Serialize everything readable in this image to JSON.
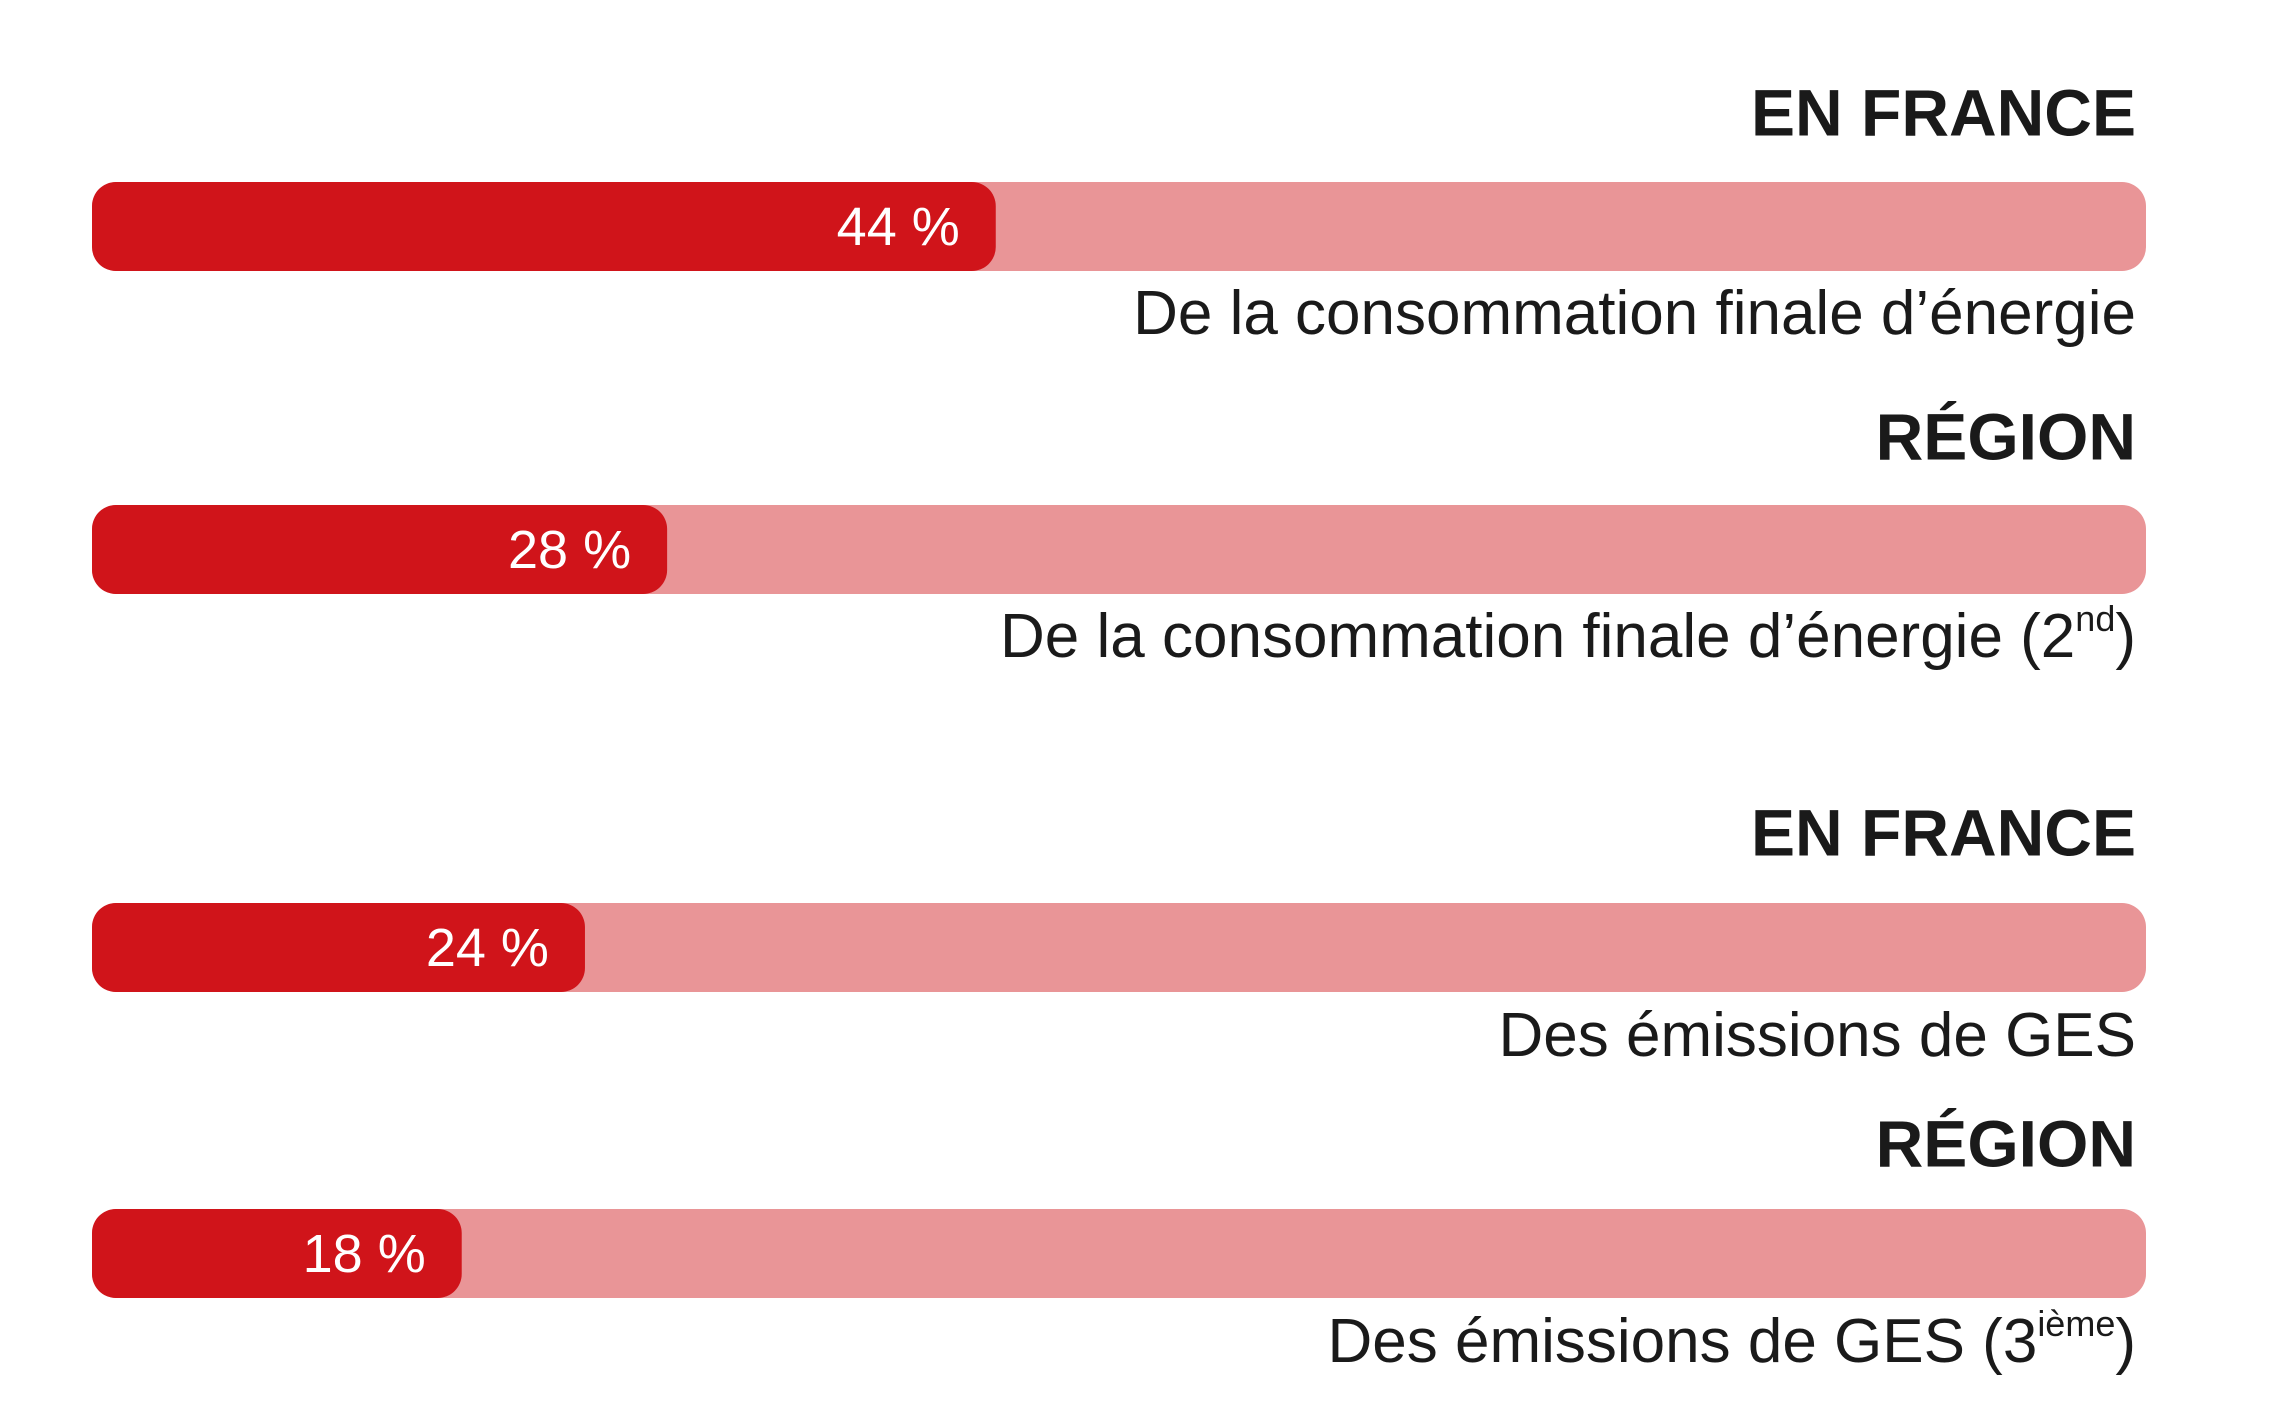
{
  "chart_data": [
    {
      "type": "progress",
      "title": "EN FRANCE",
      "values": [
        44
      ],
      "value_labels": [
        "44 %"
      ],
      "xlim": [
        0,
        100
      ],
      "color": "#d0141a",
      "track_color": "#e99597",
      "caption": "De la consommation finale d’énergie"
    },
    {
      "type": "progress",
      "title": "RÉGION",
      "values": [
        28
      ],
      "value_labels": [
        "28 %"
      ],
      "xlim": [
        0,
        100
      ],
      "color": "#d0141a",
      "track_color": "#e99597",
      "caption": "De la consommation finale d’énergie (2",
      "caption_sup": "nd",
      "caption_end": ")"
    },
    {
      "type": "progress",
      "title": "EN FRANCE",
      "values": [
        24
      ],
      "value_labels": [
        "24 %"
      ],
      "xlim": [
        0,
        100
      ],
      "color": "#d0141a",
      "track_color": "#e99597",
      "caption": "Des émissions de GES"
    },
    {
      "type": "progress",
      "title": "RÉGION",
      "values": [
        18
      ],
      "value_labels": [
        "18 %"
      ],
      "xlim": [
        0,
        100
      ],
      "color": "#d0141a",
      "track_color": "#e99597",
      "caption": "Des émissions de GES (3",
      "caption_sup": "ième",
      "caption_end": ")"
    }
  ]
}
